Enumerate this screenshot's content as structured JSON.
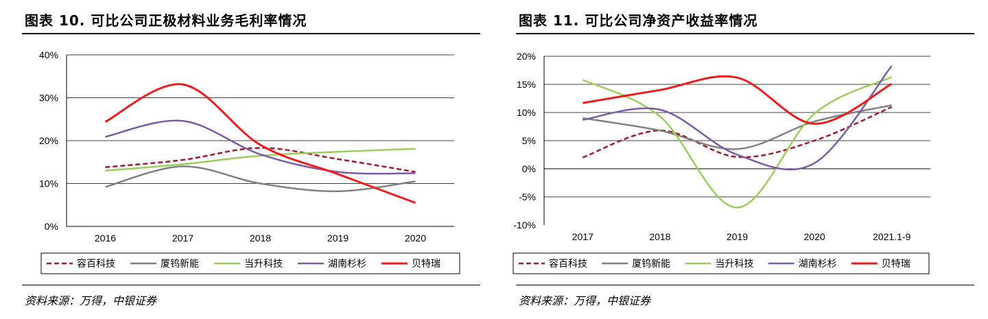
{
  "chart_data": [
    {
      "type": "line",
      "title": "图表 10. 可比公司正极材料业务毛利率情况",
      "categories": [
        "2016",
        "2017",
        "2018",
        "2019",
        "2020"
      ],
      "ylim": [
        0,
        40
      ],
      "yticks": [
        0,
        10,
        20,
        30,
        40
      ],
      "ytick_labels": [
        "0%",
        "10%",
        "20%",
        "30%",
        "40%"
      ],
      "grid": true,
      "legend_position": "bottom",
      "source": "资料来源：万得，中银证券",
      "series": [
        {
          "name": "容百科技",
          "values": [
            13.8,
            15.5,
            18.3,
            15.7,
            12.7
          ],
          "color": "#a3182b",
          "dash": true
        },
        {
          "name": "厦钨新能",
          "values": [
            9.2,
            14.0,
            10.0,
            8.2,
            10.5
          ],
          "color": "#808080",
          "dash": false
        },
        {
          "name": "当升科技",
          "values": [
            13.0,
            14.5,
            16.5,
            17.4,
            18.1
          ],
          "color": "#9acd5a",
          "dash": false
        },
        {
          "name": "湖南杉杉",
          "values": [
            20.9,
            24.6,
            16.8,
            12.7,
            12.4
          ],
          "color": "#7b5aa6",
          "dash": false
        },
        {
          "name": "贝特瑞",
          "values": [
            24.4,
            33.1,
            19.0,
            12.2,
            5.5
          ],
          "color": "#ee1c1c",
          "dash": false
        }
      ]
    },
    {
      "type": "line",
      "title": "图表 11. 可比公司净资产收益率情况",
      "categories": [
        "2017",
        "2018",
        "2019",
        "2020",
        "2021.1-9"
      ],
      "ylim": [
        -10,
        20
      ],
      "yticks": [
        -10,
        -5,
        0,
        5,
        10,
        15,
        20
      ],
      "ytick_labels": [
        "-10%",
        "-5%",
        "0%",
        "5%",
        "10%",
        "15%",
        "20%"
      ],
      "grid": true,
      "legend_position": "bottom",
      "source": "资料来源：万得，中银证券",
      "series": [
        {
          "name": "容百科技",
          "values": [
            2.0,
            6.8,
            2.1,
            5.0,
            11.0
          ],
          "color": "#a3182b",
          "dash": true
        },
        {
          "name": "厦钨新能",
          "values": [
            9.0,
            6.8,
            3.5,
            8.4,
            11.3
          ],
          "color": "#808080",
          "dash": false
        },
        {
          "name": "当升科技",
          "values": [
            15.8,
            9.3,
            -6.9,
            9.8,
            16.3
          ],
          "color": "#9acd5a",
          "dash": false
        },
        {
          "name": "湖南杉杉",
          "values": [
            8.7,
            10.5,
            2.5,
            1.0,
            18.3
          ],
          "color": "#7b5aa6",
          "dash": false
        },
        {
          "name": "贝特瑞",
          "values": [
            11.7,
            14.0,
            16.2,
            8.0,
            15.1
          ],
          "color": "#ee1c1c",
          "dash": false
        }
      ]
    }
  ]
}
